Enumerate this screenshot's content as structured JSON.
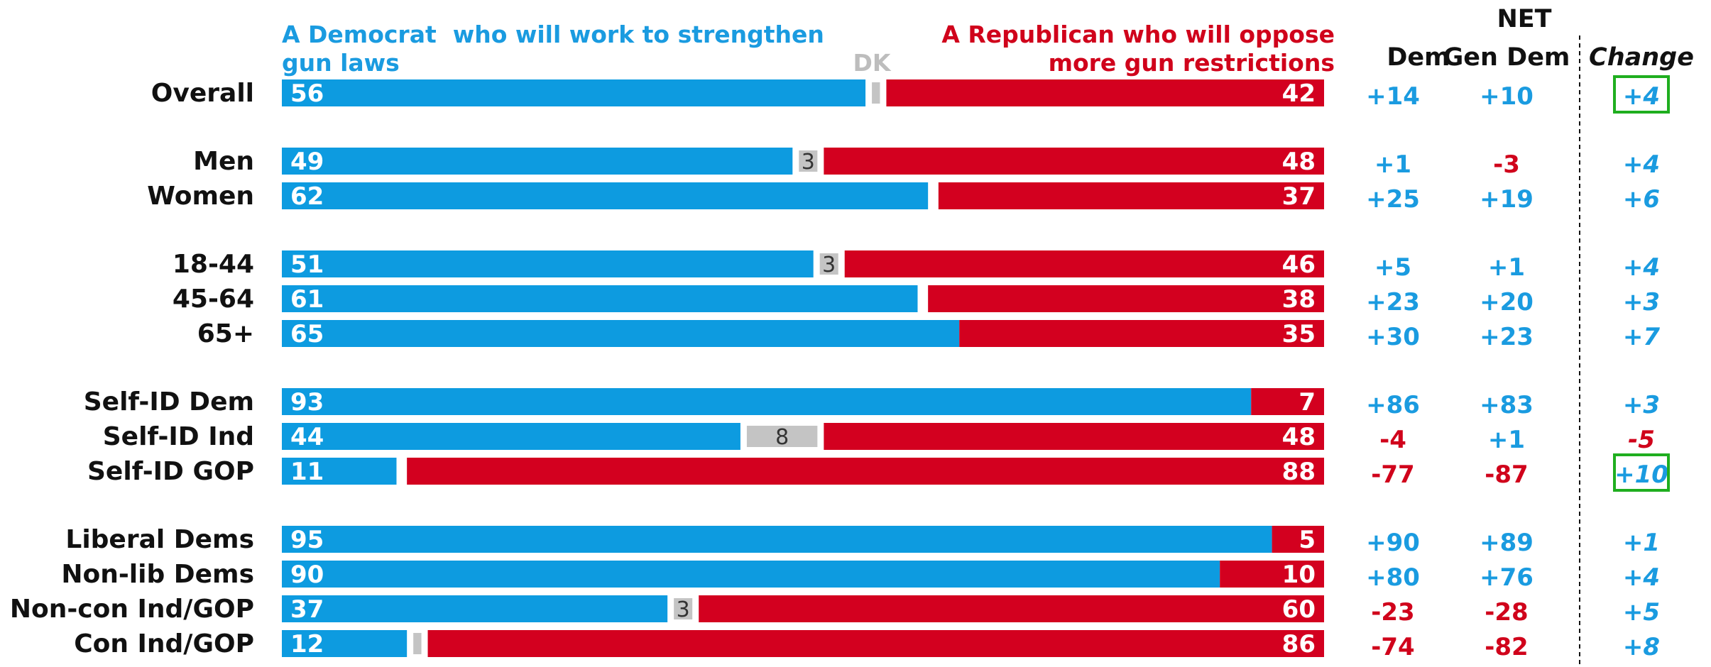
{
  "colors": {
    "dem": "#0d9be0",
    "gop": "#d3001f",
    "dk": "#c4c4c4",
    "dem_text": "#1a9be0",
    "gop_text": "#d0021b",
    "highlight": "#1fae1f"
  },
  "header": {
    "left_line1": "A Democrat  who will work to strengthen",
    "left_line2": "gun laws",
    "dk": "DK",
    "right_line1": "A Republican who will oppose",
    "right_line2": "more gun restrictions",
    "net": "NET",
    "col_dem": "Dem",
    "col_gen_dem": "Gen Dem",
    "col_change": "Change"
  },
  "chart_data": {
    "type": "bar",
    "stacked": true,
    "orientation": "horizontal",
    "xlim": [
      0,
      100
    ],
    "categories": [
      "Overall",
      "Men",
      "Women",
      "18-44",
      "45-64",
      "65+",
      "Self-ID Dem",
      "Self-ID Ind",
      "Self-ID GOP",
      "Liberal Dems",
      "Non-lib Dems",
      "Non-con Ind/GOP",
      "Con Ind/GOP"
    ],
    "groups": [
      [
        0
      ],
      [
        1,
        2
      ],
      [
        3,
        4,
        5
      ],
      [
        6,
        7,
        8
      ],
      [
        9,
        10,
        11,
        12
      ]
    ],
    "series": [
      {
        "name": "A Democrat who will work to strengthen gun laws",
        "values": [
          56,
          49,
          62,
          51,
          61,
          65,
          93,
          44,
          11,
          95,
          90,
          37,
          12
        ]
      },
      {
        "name": "DK",
        "values": [
          2,
          3,
          1,
          3,
          1,
          0,
          0,
          8,
          1,
          0,
          0,
          3,
          2
        ]
      },
      {
        "name": "A Republican who will oppose more gun restrictions",
        "values": [
          42,
          48,
          37,
          46,
          38,
          35,
          7,
          48,
          88,
          5,
          10,
          60,
          86
        ]
      }
    ],
    "dk_labels": [
      "",
      "3",
      "",
      "3",
      "",
      "",
      "",
      "8",
      "",
      "",
      "",
      "3",
      ""
    ],
    "net_dem": [
      "+14",
      "+1",
      "+25",
      "+5",
      "+23",
      "+30",
      "+86",
      "-4",
      "-77",
      "+90",
      "+80",
      "-23",
      "-74"
    ],
    "net_gen_dem": [
      "+10",
      "-3",
      "+19",
      "+1",
      "+20",
      "+23",
      "+83",
      "+1",
      "-87",
      "+89",
      "+76",
      "-28",
      "-82"
    ],
    "change": [
      "+4",
      "+4",
      "+6",
      "+4",
      "+3",
      "+7",
      "+3",
      "-5",
      "+10",
      "+1",
      "+4",
      "+5",
      "+8"
    ],
    "highlighted_change": [
      "Overall",
      "Self-ID GOP"
    ]
  }
}
